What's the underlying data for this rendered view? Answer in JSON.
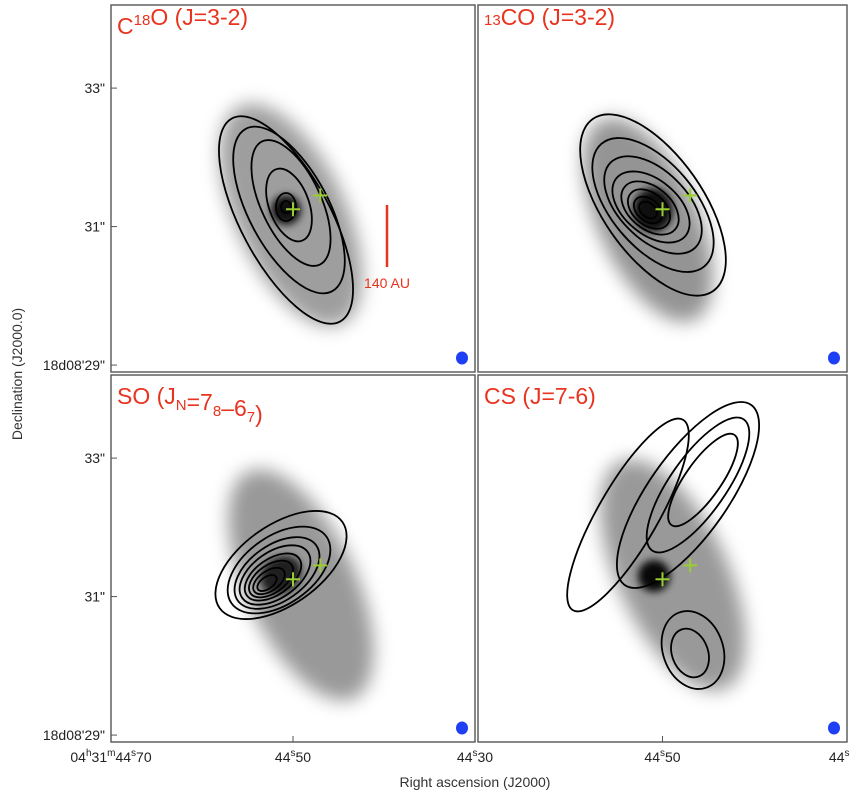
{
  "chart_data": {
    "type": "contour",
    "xlabel": "Right ascension (J2000)",
    "ylabel": "Declination (J2000.0)",
    "x_ticks": [
      {
        "value": 44.7,
        "label_parts": [
          "04",
          "h",
          "31",
          "m",
          "44",
          "s",
          "70"
        ]
      },
      {
        "value": 44.5,
        "label_parts": [
          "44",
          "s",
          "50"
        ]
      },
      {
        "value": 44.3,
        "label_parts": [
          "44",
          "s",
          "30"
        ]
      }
    ],
    "xlim": [
      44.7,
      44.3
    ],
    "y_ticks": [
      {
        "value": 33,
        "label": "33\""
      },
      {
        "value": 31,
        "label": "31\""
      },
      {
        "value": 29,
        "label": "18d08'29\""
      }
    ],
    "ylim": [
      28.9,
      34.2
    ],
    "panels": [
      {
        "title_parts": [
          "C",
          "18",
          "O (J=3-2)"
        ],
        "title_style": [
          "n",
          "sup",
          "n"
        ],
        "sources": [
          [
            44.5,
            31.25
          ],
          [
            44.47,
            31.45
          ]
        ],
        "scale_bar": "140 AU",
        "beam_color": "#1f3ff5"
      },
      {
        "title_parts": [
          "13",
          "CO (J=3-2)"
        ],
        "title_style": [
          "sup",
          "n"
        ],
        "sources": [
          [
            44.5,
            31.25
          ],
          [
            44.47,
            31.45
          ]
        ],
        "beam_color": "#1f3ff5"
      },
      {
        "title_parts": [
          "SO (J",
          "N",
          "=7",
          "8",
          "–6",
          "7",
          ")"
        ],
        "title_style": [
          "n",
          "sub",
          "n",
          "sub",
          "n",
          "sub",
          "n"
        ],
        "sources": [
          [
            44.5,
            31.25
          ],
          [
            44.47,
            31.45
          ]
        ],
        "beam_color": "#1f3ff5"
      },
      {
        "title_parts": [
          "CS (J=7-6)"
        ],
        "title_style": [
          "n"
        ],
        "sources": [
          [
            44.5,
            31.25
          ],
          [
            44.47,
            31.45
          ]
        ],
        "beam_color": "#1f3ff5"
      }
    ],
    "colors": {
      "title": "#e8331f",
      "source_marker": "#9acd32",
      "contour": "#000000",
      "beam": "#1f3ff5"
    }
  }
}
